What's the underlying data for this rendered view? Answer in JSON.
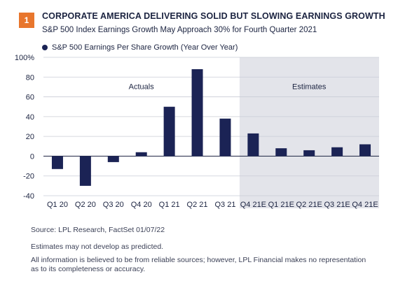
{
  "header": {
    "badge": "1",
    "title": "CORPORATE AMERICA DELIVERING SOLID BUT SLOWING EARNINGS GROWTH",
    "subtitle": "S&P 500 Index Earnings Growth May Approach 30% for Fourth Quarter 2021"
  },
  "colors": {
    "bar": "#1b2355",
    "estimate_bg": "#e3e4ea",
    "gridline": "#c9ccd6",
    "badge": "#e8762d"
  },
  "chart_data": {
    "type": "bar",
    "title": "",
    "xlabel": "",
    "ylabel": "",
    "ylim": [
      -40,
      100
    ],
    "yticks": [
      -40,
      -20,
      0,
      20,
      40,
      60,
      80,
      100
    ],
    "ytick_labels": [
      "-40",
      "-20",
      "0",
      "20",
      "40",
      "60",
      "80",
      "100%"
    ],
    "categories": [
      "Q1 20",
      "Q2 20",
      "Q3 20",
      "Q4 20",
      "Q1 21",
      "Q2 21",
      "Q3 21",
      "Q4 21E",
      "Q1 21E",
      "Q2 21E",
      "Q3 21E",
      "Q4 21E"
    ],
    "series": [
      {
        "name": "S&P 500 Earnings Per Share Growth (Year Over Year)",
        "values": [
          -13,
          -30,
          -6,
          4,
          50,
          88,
          38,
          23,
          8,
          6,
          9,
          12
        ]
      }
    ],
    "regions": [
      {
        "label": "Actuals",
        "from_index": 0,
        "to_index": 6,
        "shaded": false
      },
      {
        "label": "Estimates",
        "from_index": 7,
        "to_index": 11,
        "shaded": true
      }
    ],
    "grid": true,
    "legend_position": "top-left"
  },
  "footer": {
    "source": "Source: LPL Research, FactSet  01/07/22",
    "note1": "Estimates may not develop as predicted.",
    "note2_line1": "All information is believed to be from reliable sources; however, LPL Financial makes no representation",
    "note2_line2": "as to its completeness or accuracy."
  }
}
